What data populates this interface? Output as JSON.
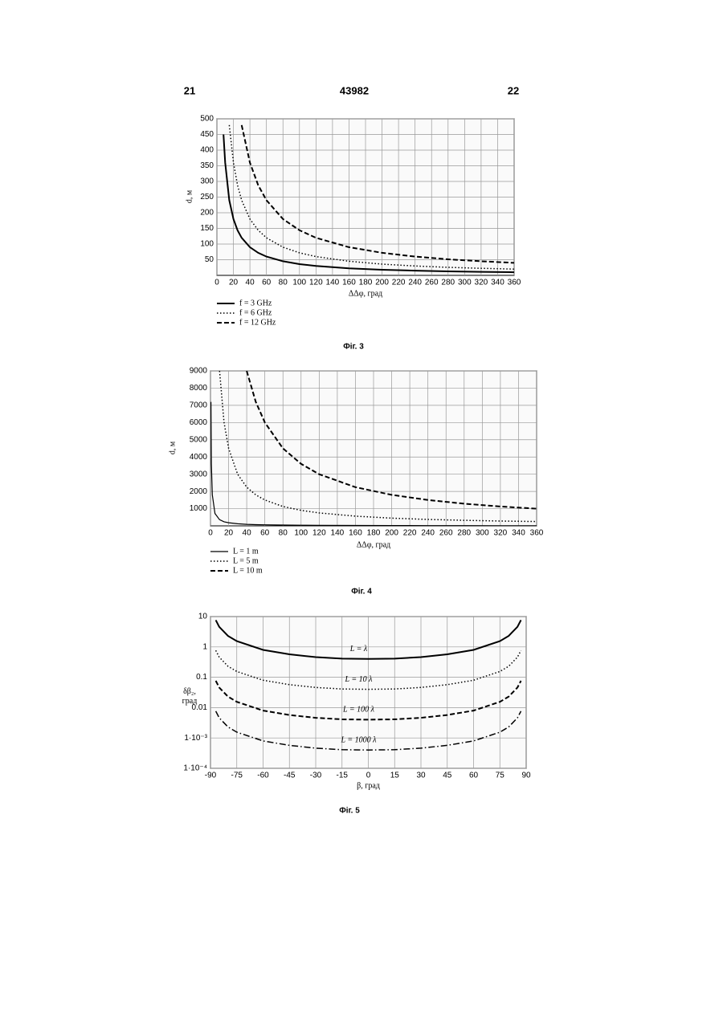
{
  "header": {
    "left": "21",
    "center": "43982",
    "right": "22"
  },
  "chart_data": [
    {
      "type": "line",
      "caption": "Фіг. 3",
      "x_label": "ΔΔφ, град",
      "y_label": "d, м",
      "x": [
        8,
        10,
        15,
        20,
        25,
        30,
        40,
        50,
        60,
        80,
        100,
        120,
        160,
        200,
        240,
        280,
        320,
        360
      ],
      "series": [
        {
          "name": "f = 3 GHz",
          "color": "#000000",
          "style": "solid",
          "width": 2,
          "values": [
            450,
            360,
            240,
            180,
            144,
            120,
            90,
            72,
            60,
            45,
            36,
            30,
            22.5,
            18,
            15,
            12.9,
            11.3,
            10
          ]
        },
        {
          "name": "f = 6 GHz",
          "color": "#000000",
          "style": "dotted",
          "width": 1.5,
          "values": [
            null,
            null,
            480,
            360,
            288,
            240,
            180,
            144,
            120,
            90,
            72,
            60,
            45,
            36,
            30,
            25.7,
            22.5,
            20
          ]
        },
        {
          "name": "f = 12 GHz",
          "color": "#000000",
          "style": "dashed",
          "width": 2,
          "values": [
            null,
            null,
            null,
            null,
            null,
            480,
            360,
            288,
            240,
            180,
            144,
            120,
            90,
            72,
            60,
            51.4,
            45,
            40
          ]
        }
      ],
      "xlim": [
        0,
        360
      ],
      "xticks": [
        0,
        20,
        40,
        60,
        80,
        100,
        120,
        140,
        160,
        180,
        200,
        220,
        240,
        260,
        280,
        300,
        320,
        340,
        360
      ],
      "ylim": [
        0,
        500
      ],
      "yticks": [
        50,
        100,
        150,
        200,
        250,
        300,
        350,
        400,
        450,
        500
      ],
      "grid": true,
      "legend": "below"
    },
    {
      "type": "line",
      "caption": "Фіг. 4",
      "x_label": "ΔΔφ, град",
      "y_label": "d, м",
      "x": [
        0.5,
        1,
        2,
        5,
        10,
        15,
        20,
        30,
        40,
        50,
        60,
        80,
        100,
        120,
        160,
        200,
        240,
        280,
        320,
        360
      ],
      "series": [
        {
          "name": "L = 1 m",
          "color": "#000000",
          "style": "solid",
          "width": 1.2,
          "values": [
            7200,
            3600,
            1800,
            720,
            360,
            240,
            180,
            120,
            90,
            72,
            60,
            45,
            36,
            30,
            22.5,
            18,
            15,
            12.9,
            11.3,
            10
          ]
        },
        {
          "name": "L = 5 m",
          "color": "#000000",
          "style": "dotted",
          "width": 1.5,
          "values": [
            null,
            null,
            null,
            null,
            9000,
            6000,
            4500,
            3000,
            2250,
            1800,
            1500,
            1125,
            900,
            750,
            562.5,
            450,
            375,
            321,
            281,
            250
          ]
        },
        {
          "name": "L = 10 m",
          "color": "#000000",
          "style": "dashed",
          "width": 2,
          "values": [
            null,
            null,
            null,
            null,
            null,
            null,
            null,
            null,
            9000,
            7200,
            6000,
            4500,
            3600,
            3000,
            2250,
            1800,
            1500,
            1286,
            1125,
            1000
          ]
        }
      ],
      "xlim": [
        0,
        360
      ],
      "xticks": [
        0,
        20,
        40,
        60,
        80,
        100,
        120,
        140,
        160,
        180,
        200,
        220,
        240,
        260,
        280,
        300,
        320,
        340,
        360
      ],
      "ylim": [
        0,
        9000
      ],
      "yticks": [
        1000,
        2000,
        3000,
        4000,
        5000,
        6000,
        7000,
        8000,
        9000
      ],
      "grid": true,
      "legend": "below"
    },
    {
      "type": "line",
      "caption": "Фіг. 5",
      "x_label": "β, град",
      "y_label": "δβ₂, град",
      "x": [
        -87,
        -85,
        -80,
        -75,
        -60,
        -45,
        -30,
        -15,
        0,
        15,
        30,
        45,
        60,
        75,
        80,
        85,
        87
      ],
      "series": [
        {
          "name": "L = λ",
          "color": "#000000",
          "style": "solid",
          "width": 2,
          "values": [
            7.64,
            4.59,
            2.3,
            1.55,
            0.8,
            0.57,
            0.46,
            0.41,
            0.4,
            0.41,
            0.46,
            0.57,
            0.8,
            1.55,
            2.3,
            4.59,
            7.64
          ]
        },
        {
          "name": "L = 10 λ",
          "color": "#000000",
          "style": "dotted",
          "width": 1.5,
          "values": [
            0.764,
            0.459,
            0.23,
            0.155,
            0.08,
            0.057,
            0.046,
            0.041,
            0.04,
            0.041,
            0.046,
            0.057,
            0.08,
            0.155,
            0.23,
            0.459,
            0.764
          ]
        },
        {
          "name": "L = 100 λ",
          "color": "#000000",
          "style": "dashed",
          "width": 2,
          "values": [
            0.0764,
            0.0459,
            0.023,
            0.0155,
            0.008,
            0.0057,
            0.0046,
            0.0041,
            0.004,
            0.0041,
            0.0046,
            0.0057,
            0.008,
            0.0155,
            0.023,
            0.0459,
            0.0764
          ]
        },
        {
          "name": "L = 1000 λ",
          "color": "#000000",
          "style": "dashdot",
          "width": 1.5,
          "values": [
            0.00764,
            0.00459,
            0.0023,
            0.00155,
            0.0008,
            0.00057,
            0.00046,
            0.00041,
            0.0004,
            0.00041,
            0.00046,
            0.00057,
            0.0008,
            0.00155,
            0.0023,
            0.00459,
            0.00764
          ]
        }
      ],
      "xlim": [
        -90,
        90
      ],
      "xticks": [
        -90,
        -75,
        -60,
        -45,
        -30,
        -15,
        0,
        15,
        30,
        45,
        60,
        75,
        90
      ],
      "ylim": [
        0.0001,
        10
      ],
      "yticks": [
        10,
        1,
        0.1,
        0.01,
        {
          "value": 0.001,
          "label": "1·10⁻³"
        },
        {
          "value": 0.0001,
          "label": "1·10⁻⁴"
        }
      ],
      "ylog": true,
      "grid": true,
      "legend": "inline"
    }
  ]
}
